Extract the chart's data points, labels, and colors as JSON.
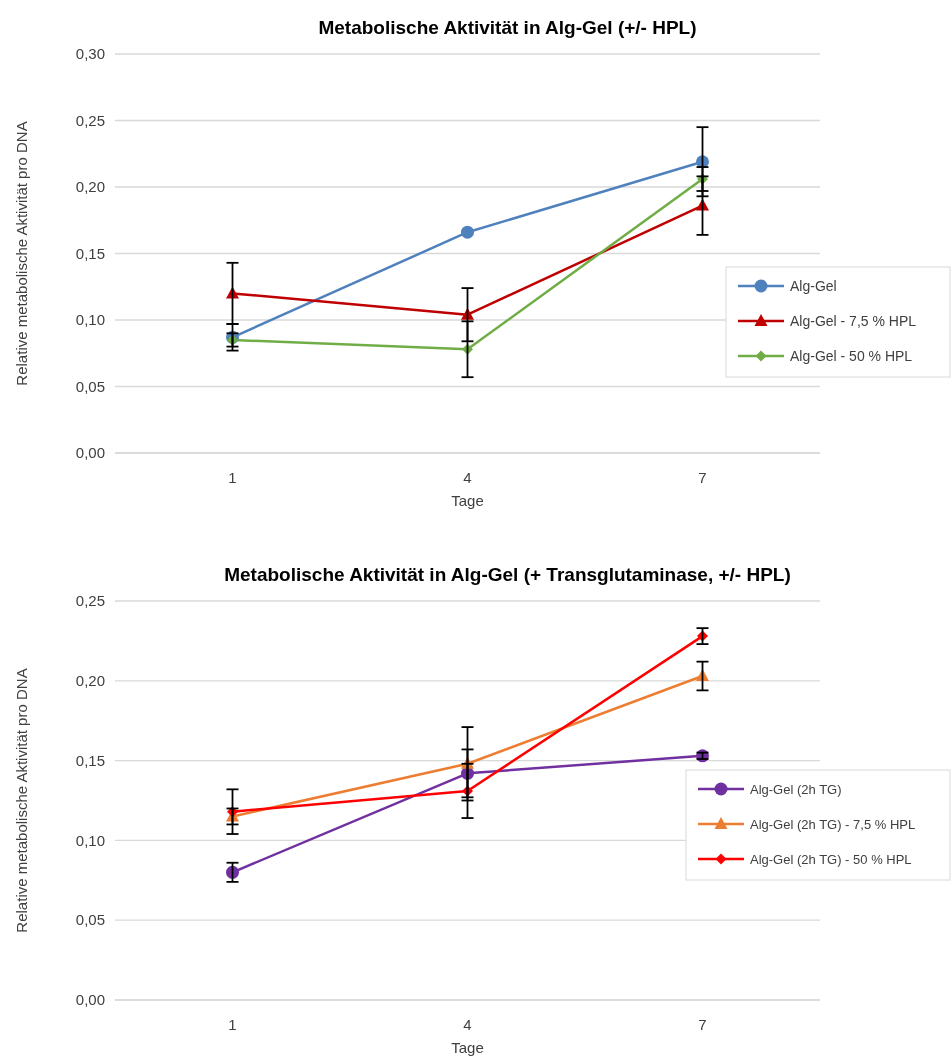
{
  "chart_data": [
    {
      "type": "line",
      "title": "Metabolische Aktivität in Alg-Gel (+/- HPL)",
      "xlabel": "Tage",
      "ylabel": "Relative metabolische Aktivität pro DNA",
      "categories": [
        "1",
        "4",
        "7"
      ],
      "series": [
        {
          "name": "Alg-Gel",
          "color": "#4f81bd",
          "marker": "circle",
          "values": [
            0.087,
            0.166,
            0.219
          ],
          "errors": [
            0.01,
            null,
            0.026
          ]
        },
        {
          "name": "Alg-Gel - 7,5 % HPL",
          "color": "#c00000",
          "marker": "triangle",
          "values": [
            0.12,
            0.104,
            0.186
          ],
          "errors": [
            0.023,
            0.02,
            0.022
          ]
        },
        {
          "name": "Alg-Gel - 50 % HPL",
          "color": "#70ad47",
          "marker": "diamond",
          "values": [
            0.085,
            0.078,
            0.206
          ],
          "errors": [
            0.005,
            0.021,
            0.009
          ]
        }
      ],
      "ylim": [
        0,
        0.3
      ],
      "yticks": [
        {
          "value": 0,
          "label": "0,00"
        },
        {
          "value": 0.05,
          "label": "0,05"
        },
        {
          "value": 0.1,
          "label": "0,10"
        },
        {
          "value": 0.15,
          "label": "0,15"
        },
        {
          "value": 0.2,
          "label": "0,20"
        },
        {
          "value": 0.25,
          "label": "0,25"
        },
        {
          "value": 0.3,
          "label": "0,30"
        }
      ],
      "grid": "y",
      "legend": "right"
    },
    {
      "type": "line",
      "title": "Metabolische Aktivität in Alg-Gel (+ Transglutaminase, +/- HPL)",
      "xlabel": "Tage",
      "ylabel": "Relative metabolische Aktivität pro DNA",
      "categories": [
        "1",
        "4",
        "7"
      ],
      "series": [
        {
          "name": "Alg-Gel (2h TG)",
          "color": "#7030a0",
          "marker": "circle",
          "values": [
            0.08,
            0.142,
            0.153
          ],
          "errors": [
            0.006,
            0.015,
            0.002
          ]
        },
        {
          "name": "Alg-Gel (2h TG) - 7,5 % HPL",
          "color": "#ed7d31",
          "marker": "triangle",
          "values": [
            0.115,
            0.148,
            0.203
          ],
          "errors": [
            0.005,
            0.023,
            0.009
          ]
        },
        {
          "name": "Alg-Gel (2h TG) - 50 % HPL",
          "color": "#ff0000",
          "marker": "diamond",
          "values": [
            0.118,
            0.131,
            0.228
          ],
          "errors": [
            0.014,
            0.017,
            0.005
          ]
        }
      ],
      "ylim": [
        0,
        0.25
      ],
      "yticks": [
        {
          "value": 0,
          "label": "0,00"
        },
        {
          "value": 0.05,
          "label": "0,05"
        },
        {
          "value": 0.1,
          "label": "0,10"
        },
        {
          "value": 0.15,
          "label": "0,15"
        },
        {
          "value": 0.2,
          "label": "0,20"
        },
        {
          "value": 0.25,
          "label": "0,25"
        }
      ],
      "grid": "y",
      "legend": "right"
    }
  ]
}
